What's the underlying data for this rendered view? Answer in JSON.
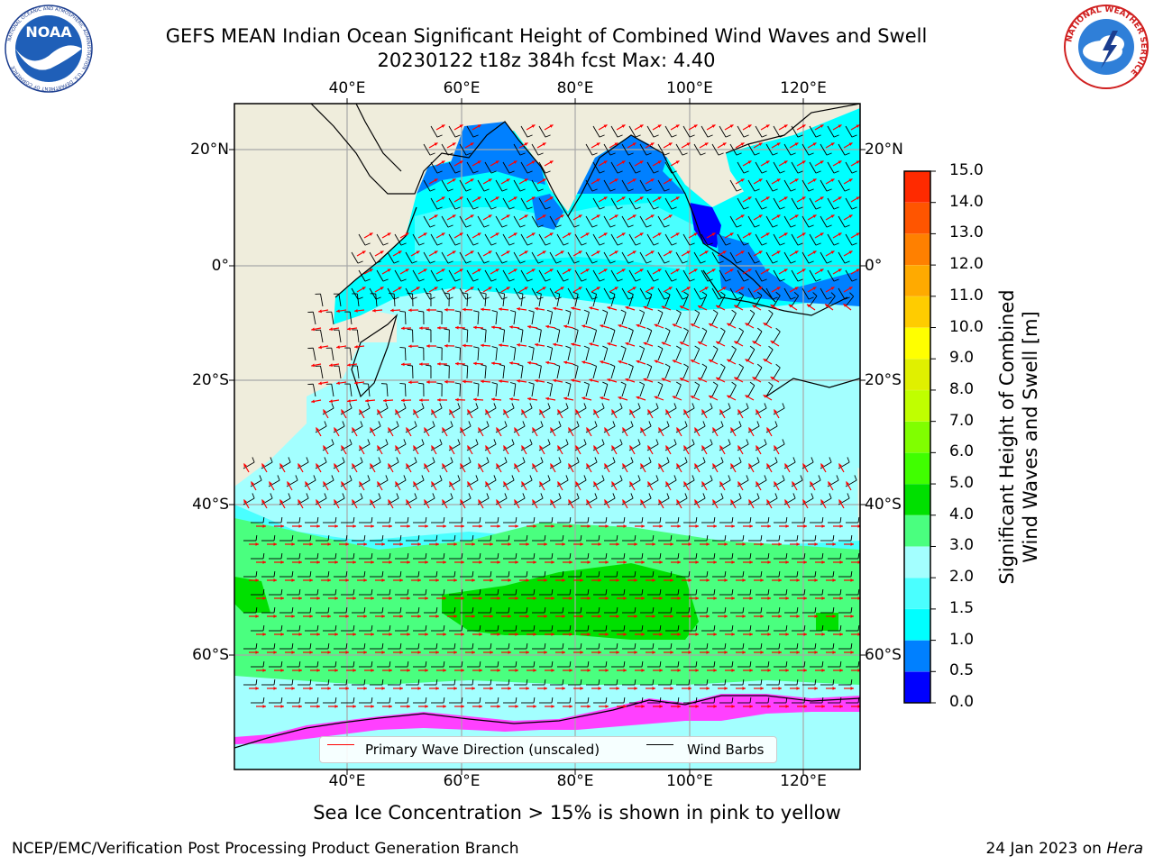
{
  "header": {
    "title_line1": "GEFS MEAN Indian Ocean Significant Height of Combined Wind Waves and Swell",
    "title_line2": "20230122 t18z 384h fcst   Max: 4.40"
  },
  "logos": {
    "noaa": {
      "text": "NOAA",
      "ring_text": "NATIONAL OCEANIC AND ATMOSPHERIC ADMINISTRATION · U.S. DEPARTMENT OF COMMERCE"
    },
    "nws": {
      "ring_text": "NATIONAL WEATHER SERVICE"
    }
  },
  "map": {
    "longitude_labels": [
      "40°E",
      "60°E",
      "80°E",
      "100°E",
      "120°E"
    ],
    "latitude_labels": [
      "20°N",
      "0°",
      "20°S",
      "40°S",
      "60°S"
    ],
    "legend": {
      "wave_direction": "Primary Wave Direction (unscaled)",
      "wind_barbs": "Wind Barbs",
      "wave_direction_color": "#ff0000",
      "wind_barbs_color": "#000000"
    },
    "colors": {
      "land": "#efeddc",
      "ocean_light": "#a3ffff",
      "ocean_cyan": "#00ffff",
      "ocean_mid": "#4affff",
      "ocean_blue": "#0080ff",
      "ocean_deep": "#0000ff",
      "green_light": "#4aff7f",
      "green": "#00e000",
      "ice_pink": "#ff40ff"
    }
  },
  "colorbar": {
    "label": "Significant Height of Combined Wind Waves and Swell [m]",
    "label_line1": "Significant Height of Combined",
    "label_line2": "Wind Waves and Swell [m]",
    "ticks": [
      "0.0",
      "0.5",
      "1.0",
      "1.5",
      "2.0",
      "3.0",
      "4.0",
      "5.0",
      "6.0",
      "7.0",
      "8.0",
      "9.0",
      "10.0",
      "11.0",
      "12.0",
      "13.0",
      "14.0",
      "15.0"
    ],
    "colors": [
      "#0000ff",
      "#0080ff",
      "#00ffff",
      "#4affff",
      "#a3ffff",
      "#4aff7f",
      "#00e000",
      "#40ff00",
      "#80ff00",
      "#c0ff00",
      "#e0f000",
      "#ffff00",
      "#ffcc00",
      "#ffaa00",
      "#ff8000",
      "#ff5500",
      "#ff2a00"
    ]
  },
  "notes": {
    "sea_ice": "Sea Ice Concentration > 15% is shown in pink to yellow",
    "footer_left": "NCEP/EMC/Verification Post Processing Product Generation Branch",
    "footer_date": "24 Jan 2023 on ",
    "footer_host": "Hera"
  }
}
